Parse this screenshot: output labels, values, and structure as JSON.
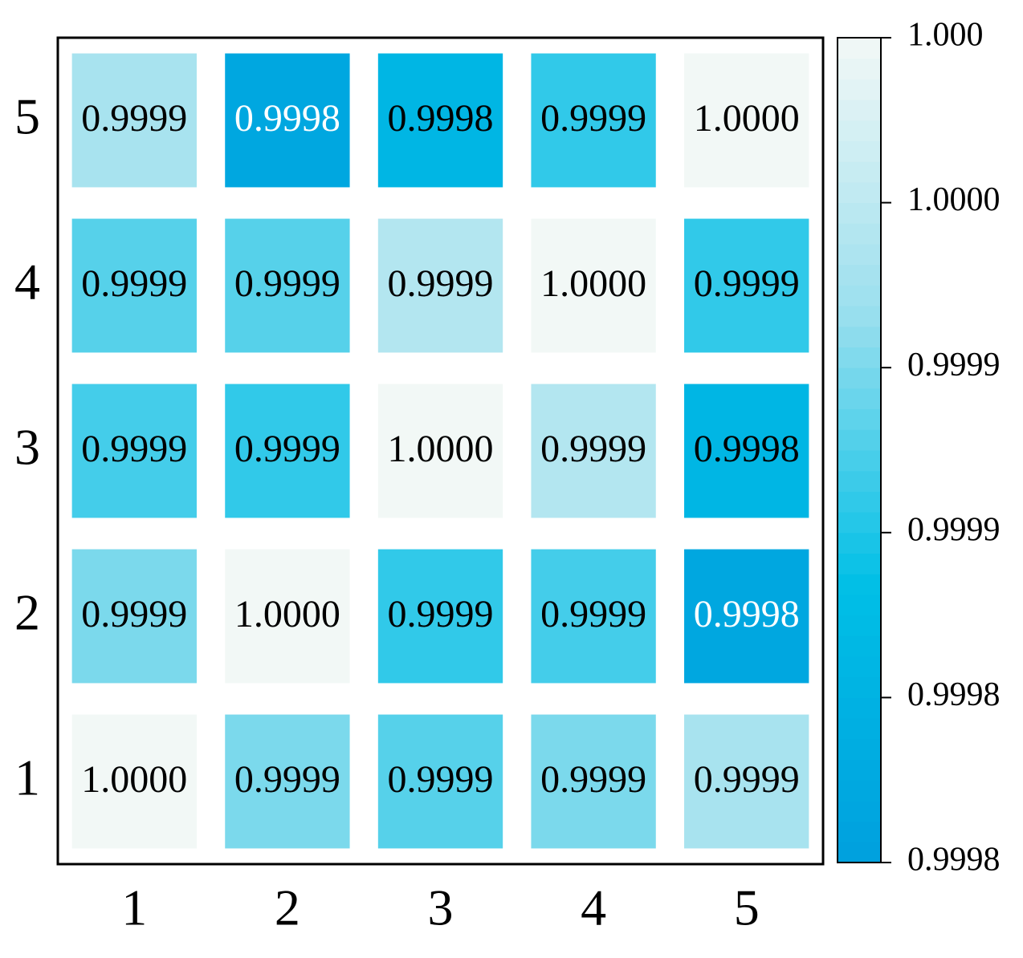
{
  "chart_data": {
    "type": "heatmap",
    "x_categories": [
      "1",
      "2",
      "3",
      "4",
      "5"
    ],
    "y_categories": [
      "1",
      "2",
      "3",
      "4",
      "5"
    ],
    "values": [
      [
        1.0,
        0.9999,
        0.99988,
        0.9999,
        0.99993
      ],
      [
        0.9999,
        1.0,
        0.99986,
        0.99987,
        0.99977
      ],
      [
        0.99987,
        0.99986,
        1.0,
        0.99994,
        0.99981
      ],
      [
        0.99988,
        0.99988,
        0.99994,
        1.0,
        0.99986
      ],
      [
        0.99993,
        0.99977,
        0.99981,
        0.99986,
        1.0
      ]
    ],
    "value_labels": [
      [
        "1.0000",
        "0.9999",
        "0.9999",
        "0.9999",
        "0.9999"
      ],
      [
        "0.9999",
        "1.0000",
        "0.9999",
        "0.9999",
        "0.9998"
      ],
      [
        "0.9999",
        "0.9999",
        "1.0000",
        "0.9999",
        "0.9998"
      ],
      [
        "0.9999",
        "0.9999",
        "0.9999",
        "1.0000",
        "0.9999"
      ],
      [
        "0.9999",
        "0.9998",
        "0.9998",
        "0.9999",
        "1.0000"
      ]
    ],
    "colormap": [
      "#00a0de",
      "#00bfe6",
      "#9adfee",
      "#f2f8f6"
    ],
    "clim": [
      0.99975,
      1.0
    ],
    "cticks": [
      {
        "value": 0.99975,
        "label": "0.9998"
      },
      {
        "value": 0.9998,
        "label": "0.9998"
      },
      {
        "value": 0.99985,
        "label": "0.9999"
      },
      {
        "value": 0.9999,
        "label": "0.9999"
      },
      {
        "value": 0.99995,
        "label": "1.0000"
      },
      {
        "value": 1.0,
        "label": "1.000"
      }
    ]
  }
}
